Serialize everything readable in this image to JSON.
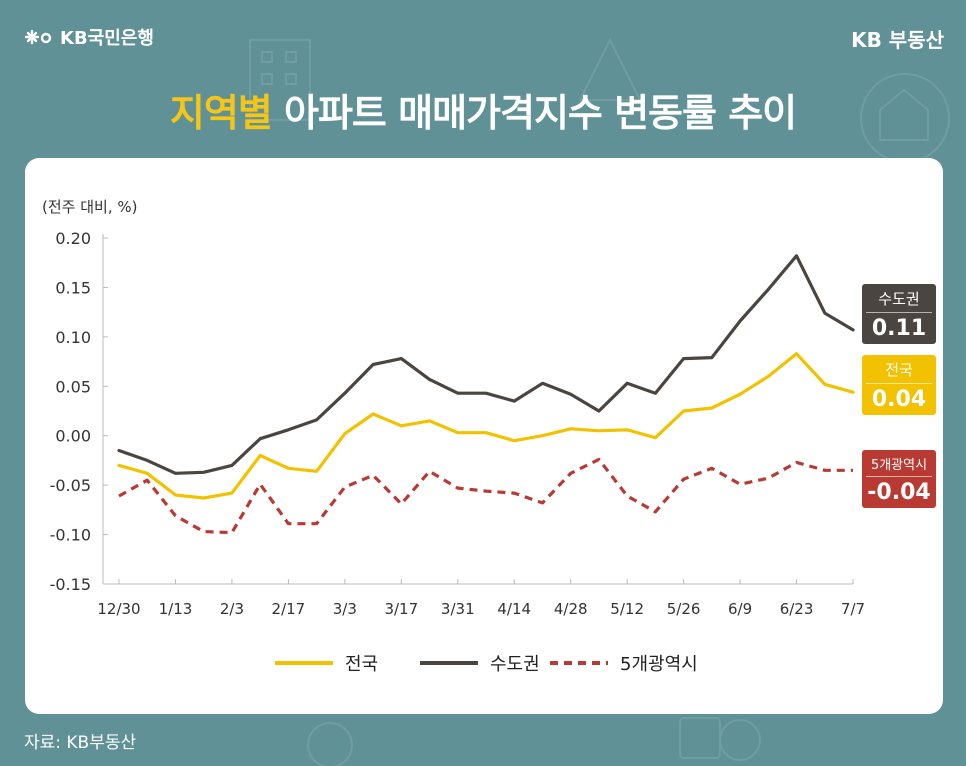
{
  "header": {
    "brand_left": "KB국민은행",
    "brand_right": "KB 부동산",
    "title_accent": "지역별",
    "title_rest": " 아파트 매매가격지수 변동률 추이"
  },
  "footer": {
    "source": "자료: KB부동산"
  },
  "callouts": [
    {
      "name": "수도권",
      "value": "0.11",
      "color": "#4a4540"
    },
    {
      "name": "전국",
      "value": "0.04",
      "color": "#f2c200"
    },
    {
      "name": "5개광역시",
      "value": "-0.04",
      "color": "#b83a32"
    }
  ],
  "colors": {
    "background": "#5f9196",
    "accent": "#f5c518",
    "national": "#f2c200",
    "capital": "#4a4540",
    "metro5": "#b83a32"
  },
  "chart_data": {
    "type": "line",
    "unit_label": "(전주 대비, %)",
    "x_tick_labels": [
      "12/30",
      "1/13",
      "2/3",
      "2/17",
      "3/3",
      "3/17",
      "3/31",
      "4/14",
      "4/28",
      "5/12",
      "5/26",
      "6/9",
      "6/23",
      "7/7"
    ],
    "y_ticks": [
      "0.20",
      "0.15",
      "0.10",
      "0.05",
      "0.00",
      "-0.05",
      "-0.10",
      "-0.15"
    ],
    "ylim": [
      -0.15,
      0.2
    ],
    "grid": false,
    "legend_position": "bottom",
    "series": [
      {
        "name": "전국",
        "style": "solid",
        "values": [
          -0.03,
          -0.038,
          -0.06,
          -0.063,
          -0.058,
          -0.02,
          -0.033,
          -0.036,
          0.002,
          0.022,
          0.01,
          0.015,
          0.003,
          0.003,
          -0.005,
          0.0,
          0.007,
          0.005,
          0.006,
          -0.002,
          0.025,
          0.028,
          0.042,
          0.06,
          0.083,
          0.052,
          0.044
        ]
      },
      {
        "name": "수도권",
        "style": "solid",
        "values": [
          -0.015,
          -0.025,
          -0.038,
          -0.037,
          -0.03,
          -0.003,
          0.006,
          0.016,
          0.043,
          0.072,
          0.078,
          0.057,
          0.043,
          0.043,
          0.035,
          0.053,
          0.042,
          0.025,
          0.053,
          0.043,
          0.078,
          0.079,
          0.116,
          0.148,
          0.182,
          0.124,
          0.107
        ]
      },
      {
        "name": "5개광역시",
        "style": "dashed",
        "values": [
          -0.061,
          -0.045,
          -0.081,
          -0.097,
          -0.098,
          -0.049,
          -0.089,
          -0.089,
          -0.052,
          -0.04,
          -0.069,
          -0.036,
          -0.053,
          -0.056,
          -0.058,
          -0.068,
          -0.038,
          -0.024,
          -0.061,
          -0.077,
          -0.044,
          -0.033,
          -0.049,
          -0.043,
          -0.027,
          -0.035,
          -0.035
        ]
      }
    ]
  }
}
